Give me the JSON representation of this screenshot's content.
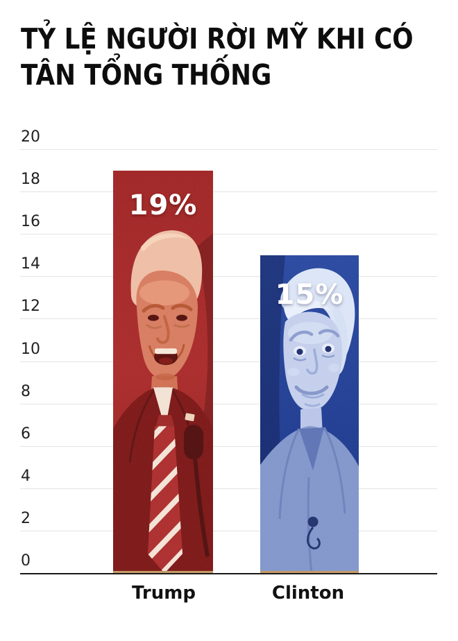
{
  "page": {
    "background": "#ffffff"
  },
  "title": {
    "text": "TỶ LỆ NGƯỜI RỜI MỸ KHI CÓ TÂN TỔNG THỐNG",
    "lines": [
      "TỶ LỆ NGƯỜI RỜI MỸ KHI CÓ",
      "TÂN TỔNG THỐNG"
    ]
  },
  "chart_data": {
    "type": "bar",
    "title": "TỶ LỆ NGƯỜI RỜI MỸ KHI CÓ TÂN TỔNG THỐNG",
    "categories": [
      "Trump",
      "Clinton"
    ],
    "values": [
      19,
      15
    ],
    "value_labels": [
      "19%",
      "15%"
    ],
    "unit": "%",
    "ylim": [
      0,
      20
    ],
    "yticks": [
      0,
      2,
      4,
      6,
      8,
      10,
      12,
      14,
      16,
      18,
      20
    ],
    "grid": true,
    "legend": "none",
    "bar_colors": {
      "Trump": "#a32424",
      "Clinton": "#27479c"
    },
    "colors": {
      "gridline": "#e3e3e3",
      "axis": "#1a1a1a",
      "baseline_strip": "#c49a66",
      "value_label_text": "#ffffff",
      "title_text": "#0d0d0d",
      "tick_text": "#212121",
      "category_text": "#111111"
    }
  }
}
